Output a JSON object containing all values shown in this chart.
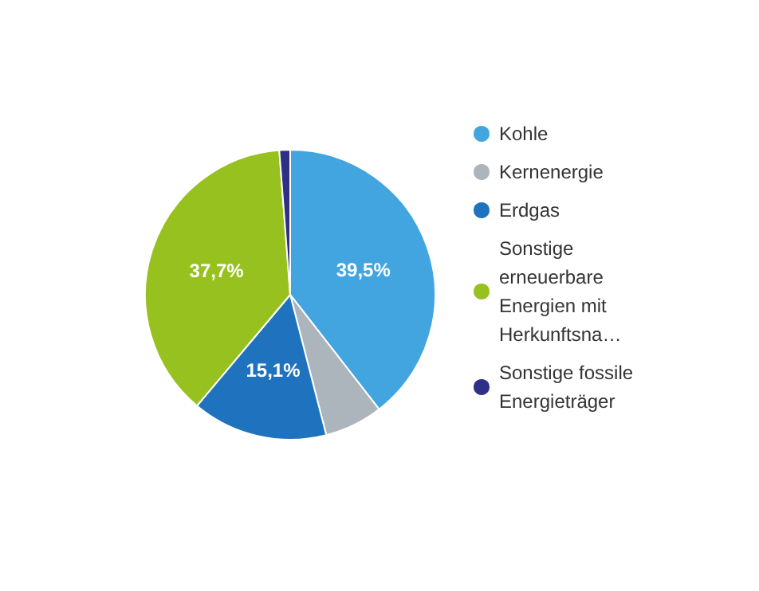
{
  "chart_data": {
    "type": "pie",
    "categories": [
      "Kohle",
      "Kernenergie",
      "Erdgas",
      "Sonstige erneuerbare Energien mit Herkunftsna…",
      "Sonstige fossile Energieträger"
    ],
    "values": [
      39.5,
      6.5,
      15.1,
      37.7,
      1.2
    ],
    "colors": [
      "#42a5e0",
      "#adb5bc",
      "#1f72bd",
      "#97c11f",
      "#2e2f86"
    ],
    "value_labels": [
      "39,5%",
      null,
      "15,1%",
      "37,7%",
      null
    ],
    "legend": "right"
  }
}
